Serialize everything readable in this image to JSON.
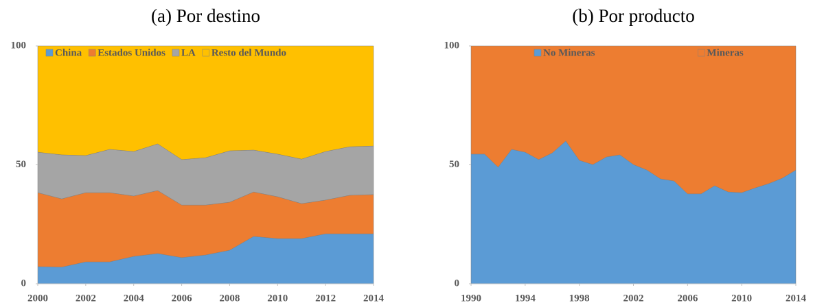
{
  "chart_data": [
    {
      "type": "stacked_area",
      "title": "(a) Por destino",
      "x": [
        2000,
        2001,
        2002,
        2003,
        2004,
        2005,
        2006,
        2007,
        2008,
        2009,
        2010,
        2011,
        2012,
        2013,
        2014
      ],
      "series": [
        {
          "name": "China",
          "color": "#5b9bd5",
          "values": [
            7.2,
            7,
            9.2,
            9.2,
            11.5,
            12.7,
            11,
            12.1,
            14.1,
            19.9,
            19,
            19,
            21,
            21,
            21
          ]
        },
        {
          "name": "Estados Unidos",
          "color": "#ed7d31",
          "values": [
            31.1,
            28.7,
            29.1,
            29.1,
            25.4,
            26.5,
            22.1,
            21,
            20.2,
            18.7,
            17.6,
            14.7,
            14.2,
            16.2,
            16.5
          ]
        },
        {
          "name": "LA",
          "color": "#a5a5a5",
          "values": [
            17,
            18.5,
            15.6,
            18.2,
            18.7,
            19.6,
            19.1,
            19.9,
            21.6,
            17.6,
            17.9,
            18.7,
            20.4,
            20.4,
            20.4
          ]
        },
        {
          "name": "Resto del Mundo",
          "color": "#ffc000",
          "values": [
            44.7,
            45.8,
            46.1,
            43.5,
            44.4,
            41.2,
            47.8,
            47,
            44.1,
            43.8,
            45.5,
            47.6,
            44.4,
            42.4,
            42.1
          ]
        }
      ],
      "xlim": [
        2000,
        2014
      ],
      "xticks": [
        2000,
        2002,
        2004,
        2006,
        2008,
        2010,
        2012,
        2014
      ],
      "ylim": [
        0,
        100
      ],
      "yticks": [
        0,
        50,
        100
      ]
    },
    {
      "type": "stacked_area",
      "title": "(b) Por producto",
      "x": [
        1990,
        1991,
        1992,
        1993,
        1994,
        1995,
        1996,
        1997,
        1998,
        1999,
        2000,
        2001,
        2002,
        2003,
        2004,
        2005,
        2006,
        2007,
        2008,
        2009,
        2010,
        2011,
        2012,
        2013,
        2014
      ],
      "series": [
        {
          "name": "No Mineras",
          "color": "#5b9bd5",
          "values": [
            54.5,
            54.5,
            49,
            56.5,
            55.3,
            52.2,
            55,
            60,
            51.9,
            50.1,
            53.3,
            54.2,
            50.1,
            47.8,
            44.1,
            43.2,
            37.8,
            37.8,
            41.2,
            38.6,
            38.3,
            40.3,
            42.1,
            44.4,
            47.8
          ]
        },
        {
          "name": "Mineras",
          "color": "#ed7d31",
          "values": [
            45.5,
            45.5,
            51,
            43.5,
            44.7,
            47.8,
            45,
            40,
            48.1,
            49.9,
            46.7,
            45.8,
            49.9,
            52.2,
            55.9,
            56.8,
            62.2,
            62.2,
            58.8,
            61.4,
            61.7,
            59.7,
            57.9,
            55.6,
            52.2
          ]
        }
      ],
      "xlim": [
        1990,
        2014
      ],
      "xticks": [
        1990,
        1994,
        1998,
        2002,
        2006,
        2010,
        2014
      ],
      "ylim": [
        0,
        100
      ],
      "yticks": [
        0,
        50,
        100
      ]
    }
  ]
}
